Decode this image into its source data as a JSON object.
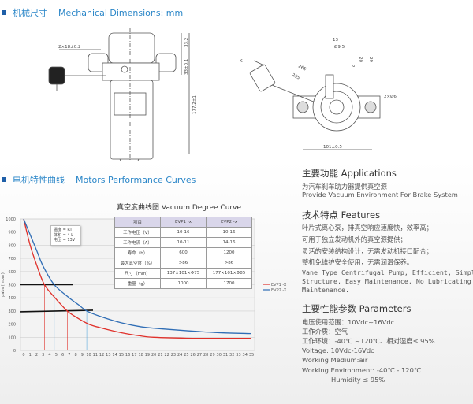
{
  "section1": {
    "title_cn": "机械尺寸",
    "title_en": "Mechanical Dimensions: mm"
  },
  "drawing_front": {
    "dim_width": "2×18±0.2",
    "dim_top": "33.2",
    "dim_mid": "33±0.1",
    "dim_height": "177.2±1"
  },
  "drawing_top": {
    "label_k": "K",
    "dim_cable1": "265",
    "dim_cable2": "255",
    "dim_13": "13",
    "dim_95": "Ø9.5",
    "dim_2": "2",
    "dim_20": "20",
    "dim_29": "29",
    "dim_holes": "2×Ø6",
    "dim_width": "101±0.5"
  },
  "section2": {
    "title_cn": "电机特性曲线",
    "title_en": "Motors Performance Curves"
  },
  "chart_title": "真空度曲线图  Vacuum Degree Curve",
  "conditions": [
    "温度 = RT",
    "体积 = 4 L",
    "电压 = 13V"
  ],
  "spec_table": {
    "headers": [
      "项目",
      "EVP1 -x",
      "EVP2 -x"
    ],
    "rows": [
      [
        "工作电压（V）",
        "10-16",
        "10-16"
      ],
      [
        "工作电流（A）",
        "10-11",
        "14-16"
      ],
      [
        "寿命（h）",
        "600",
        "1200"
      ],
      [
        "最大真空度（%）",
        ">86",
        ">86"
      ],
      [
        "尺寸（mm）",
        "137×101×Φ75",
        "177×101×Φ85"
      ],
      [
        "重量（g）",
        "1000",
        "1700"
      ]
    ]
  },
  "chart_data": {
    "type": "line",
    "title": "真空度曲线图  Vacuum Degree Curve",
    "xlabel": "",
    "ylabel": "pabs (mbar)",
    "xlim": [
      0,
      35
    ],
    "ylim": [
      0,
      1000
    ],
    "xticks": [
      0,
      1,
      2,
      3,
      4,
      5,
      6,
      7,
      8,
      9,
      10,
      11,
      12,
      13,
      14,
      15,
      16,
      17,
      18,
      19,
      20,
      21,
      22,
      23,
      24,
      25,
      26,
      27,
      28,
      29,
      30,
      31,
      32,
      33,
      34,
      35
    ],
    "yticks": [
      0,
      100,
      200,
      300,
      400,
      500,
      600,
      700,
      800,
      900,
      1000
    ],
    "grid": true,
    "legend": "right",
    "series": [
      {
        "name": "EVP1 -X",
        "color": "#e0302a",
        "x": [
          0,
          1,
          2,
          3.2,
          5,
          6.7,
          8,
          10,
          12,
          15,
          18,
          20,
          25,
          30,
          35
        ],
        "y": [
          1000,
          800,
          650,
          500,
          390,
          300,
          255,
          200,
          170,
          135,
          110,
          100,
          93,
          92,
          92
        ]
      },
      {
        "name": "EVP2 -X",
        "color": "#2f6db5",
        "x": [
          0,
          1,
          2,
          3,
          4.7,
          7,
          8.5,
          9.7,
          12,
          15,
          18,
          21,
          25,
          30,
          35
        ],
        "y": [
          1000,
          880,
          760,
          640,
          500,
          400,
          345,
          300,
          255,
          210,
          180,
          165,
          150,
          135,
          128
        ]
      }
    ],
    "reference_lines": {
      "y": [
        500,
        300
      ],
      "x_evp1": [
        3.2,
        6.7
      ],
      "x_evp2": [
        4.7,
        9.7
      ]
    }
  },
  "applications": {
    "title": "主要功能  Applications",
    "lines": [
      "为汽车刹车助力器提供真空源",
      "Provide Vacuum Environment For Brake System"
    ]
  },
  "features": {
    "title": "技术特点 Features",
    "lines": [
      "叶片式离心泵，排真空响应速度快，效率高；",
      "可用于独立发动机外的真空源提供；",
      "灵活的安装结构设计，无需发动机接口配合；",
      "整机免维护安全使用，无需润滑保养。"
    ],
    "en": [
      "Vane Type Centrifugal Pump, Efficient, Simple",
      "Structure, Easy Maintenance, No Lubricating",
      "Maintenance."
    ]
  },
  "parameters": {
    "title": "主要性能参数 Parameters",
    "lines": [
      "电压使用范围：10Vdc~16Vdc",
      "工作介质：空气",
      "工作环境：-40℃ ~120℃、相对湿度≤ 95%",
      "Voltage: 10Vdc-16Vdc",
      "Working Medium:air",
      "Working Environment: -40℃ - 120℃"
    ],
    "humidity": "Humidity ≤ 95%"
  }
}
